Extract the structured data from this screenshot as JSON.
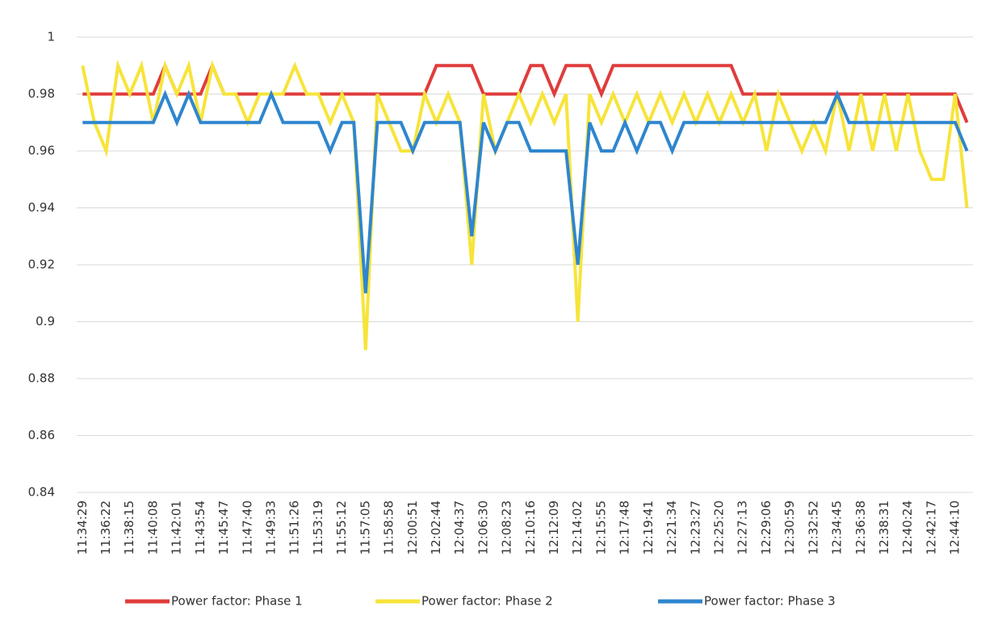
{
  "chart_data": {
    "type": "line",
    "categories": [
      "11:34:29",
      null,
      "11:36:22",
      null,
      "11:38:15",
      null,
      "11:40:08",
      null,
      "11:42:01",
      null,
      "11:43:54",
      null,
      "11:45:47",
      null,
      "11:47:40",
      null,
      "11:49:33",
      null,
      "11:51:26",
      null,
      "11:53:19",
      null,
      "11:55:12",
      null,
      "11:57:05",
      null,
      "11:58:58",
      null,
      "12:00:51",
      null,
      "12:02:44",
      null,
      "12:04:37",
      null,
      "12:06:30",
      null,
      "12:08:23",
      null,
      "12:10:16",
      null,
      "12:12:09",
      null,
      "12:14:02",
      null,
      "12:15:55",
      null,
      "12:17:48",
      null,
      "12:19:41",
      null,
      "12:21:34",
      null,
      "12:23:27",
      null,
      "12:25:20",
      null,
      "12:27:13",
      null,
      "12:29:06",
      null,
      "12:30:59",
      null,
      "12:32:52",
      null,
      "12:34:45",
      null,
      "12:36:38",
      null,
      "12:38:31",
      null,
      "12:40:24",
      null,
      "12:42:17",
      null,
      "12:44:10",
      null
    ],
    "series": [
      {
        "name": "Power factor: Phase 1",
        "color": "#e03c3c",
        "values": [
          0.98,
          0.98,
          0.98,
          0.98,
          0.98,
          0.98,
          0.98,
          0.99,
          0.98,
          0.98,
          0.98,
          0.99,
          0.98,
          0.98,
          0.98,
          0.98,
          0.98,
          0.98,
          0.98,
          0.98,
          0.98,
          0.98,
          0.98,
          0.98,
          0.98,
          0.98,
          0.98,
          0.98,
          0.98,
          0.98,
          0.99,
          0.99,
          0.99,
          0.99,
          0.98,
          0.98,
          0.98,
          0.98,
          0.99,
          0.99,
          0.98,
          0.99,
          0.99,
          0.99,
          0.98,
          0.99,
          0.99,
          0.99,
          0.99,
          0.99,
          0.99,
          0.99,
          0.99,
          0.99,
          0.99,
          0.99,
          0.98,
          0.98,
          0.98,
          0.98,
          0.98,
          0.98,
          0.98,
          0.98,
          0.98,
          0.98,
          0.98,
          0.98,
          0.98,
          0.98,
          0.98,
          0.98,
          0.98,
          0.98,
          0.98,
          0.97
        ]
      },
      {
        "name": "Power factor: Phase 2",
        "color": "#f7e43a",
        "values": [
          0.99,
          0.97,
          0.96,
          0.99,
          0.98,
          0.99,
          0.97,
          0.99,
          0.98,
          0.99,
          0.97,
          0.99,
          0.98,
          0.98,
          0.97,
          0.98,
          0.98,
          0.98,
          0.99,
          0.98,
          0.98,
          0.97,
          0.98,
          0.97,
          0.89,
          0.98,
          0.97,
          0.96,
          0.96,
          0.98,
          0.97,
          0.98,
          0.97,
          0.92,
          0.98,
          0.96,
          0.97,
          0.98,
          0.97,
          0.98,
          0.97,
          0.98,
          0.9,
          0.98,
          0.97,
          0.98,
          0.97,
          0.98,
          0.97,
          0.98,
          0.97,
          0.98,
          0.97,
          0.98,
          0.97,
          0.98,
          0.97,
          0.98,
          0.96,
          0.98,
          0.97,
          0.96,
          0.97,
          0.96,
          0.98,
          0.96,
          0.98,
          0.96,
          0.98,
          0.96,
          0.98,
          0.96,
          0.95,
          0.95,
          0.98,
          0.94
        ]
      },
      {
        "name": "Power factor: Phase 3",
        "color": "#2f86cf",
        "values": [
          0.97,
          0.97,
          0.97,
          0.97,
          0.97,
          0.97,
          0.97,
          0.98,
          0.97,
          0.98,
          0.97,
          0.97,
          0.97,
          0.97,
          0.97,
          0.97,
          0.98,
          0.97,
          0.97,
          0.97,
          0.97,
          0.96,
          0.97,
          0.97,
          0.91,
          0.97,
          0.97,
          0.97,
          0.96,
          0.97,
          0.97,
          0.97,
          0.97,
          0.93,
          0.97,
          0.96,
          0.97,
          0.97,
          0.96,
          0.96,
          0.96,
          0.96,
          0.92,
          0.97,
          0.96,
          0.96,
          0.97,
          0.96,
          0.97,
          0.97,
          0.96,
          0.97,
          0.97,
          0.97,
          0.97,
          0.97,
          0.97,
          0.97,
          0.97,
          0.97,
          0.97,
          0.97,
          0.97,
          0.97,
          0.98,
          0.97,
          0.97,
          0.97,
          0.97,
          0.97,
          0.97,
          0.97,
          0.97,
          0.97,
          0.97,
          0.96
        ]
      }
    ],
    "ylim": [
      0.84,
      1
    ],
    "yticks": [
      0.84,
      0.86,
      0.88,
      0.9,
      0.92,
      0.94,
      0.96,
      0.98,
      1
    ],
    "grid": true,
    "legend": "bottom"
  }
}
